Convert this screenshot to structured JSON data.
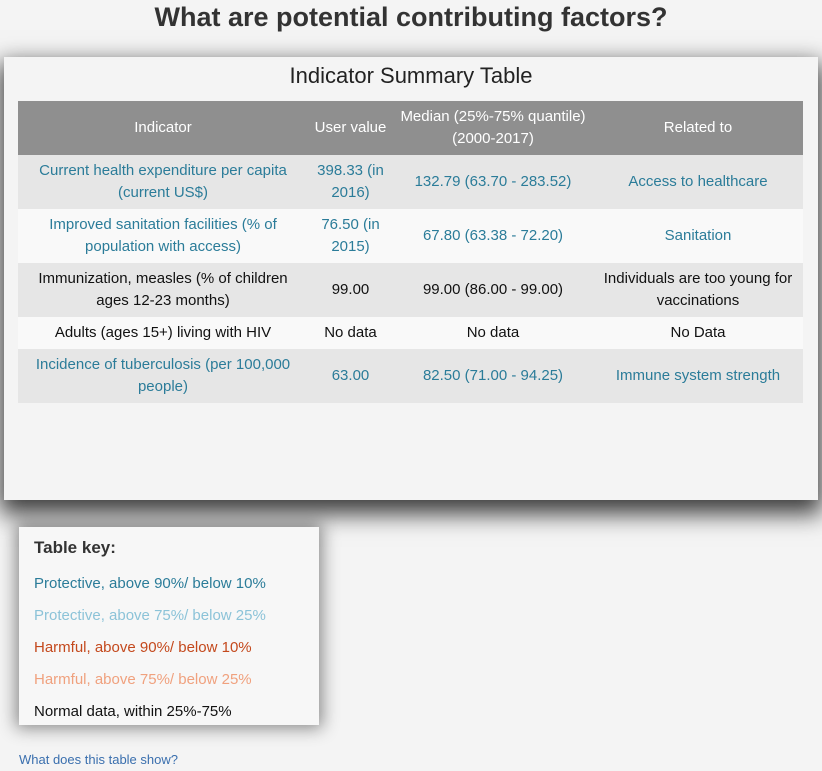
{
  "page_title": "What are potential contributing factors?",
  "card_title": "Indicator Summary Table",
  "table": {
    "headers": [
      "Indicator",
      "User value",
      "Median (25%-75% quantile) (2000-2017)",
      "Related to"
    ],
    "rows": [
      {
        "indicator": "Current health expenditure per capita (current US$)",
        "user_value": "398.33 (in 2016)",
        "median": "132.79 (63.70 - 283.52)",
        "related": "Access to healthcare",
        "status": "protective-90"
      },
      {
        "indicator": "Improved sanitation facilities (% of population with access)",
        "user_value": "76.50 (in 2015)",
        "median": "67.80 (63.38 - 72.20)",
        "related": "Sanitation",
        "status": "protective-90"
      },
      {
        "indicator": "Immunization, measles (% of children ages 12-23 months)",
        "user_value": "99.00",
        "median": "99.00 (86.00 - 99.00)",
        "related": "Individuals are too young for vaccinations",
        "status": "normal"
      },
      {
        "indicator": "Adults (ages 15+) living with HIV",
        "user_value": "No data",
        "median": "No data",
        "related": "No Data",
        "status": "normal"
      },
      {
        "indicator": "Incidence of tuberculosis (per 100,000 people)",
        "user_value": "63.00",
        "median": "82.50 (71.00 - 94.25)",
        "related": "Immune system strength",
        "status": "protective-90"
      }
    ]
  },
  "key": {
    "title": "Table key:",
    "items": [
      {
        "label": "Protective, above 90%/ below 10%",
        "color": "#2b7c99"
      },
      {
        "label": "Protective, above 75%/ below 25%",
        "color": "#8cc3d8"
      },
      {
        "label": "Harmful, above 90%/ below 10%",
        "color": "#c4491d"
      },
      {
        "label": "Harmful, above 75%/ below 25%",
        "color": "#f0a17e"
      },
      {
        "label": "Normal data, within 25%-75%",
        "color": "#111111"
      }
    ]
  },
  "help_link": "What does this table show?"
}
